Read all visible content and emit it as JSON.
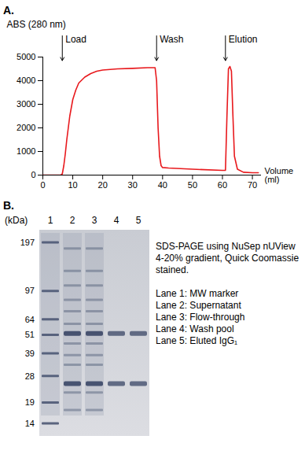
{
  "chart_data": {
    "type": "line",
    "panel_label": "A.",
    "y_label": "ABS (280 nm)",
    "x_label": "Volume (ml)",
    "x": [
      0,
      3,
      6,
      6.5,
      7,
      7.5,
      8,
      9,
      10,
      11,
      12,
      14,
      16,
      18,
      20,
      25,
      30,
      35,
      37.5,
      38,
      38.5,
      39,
      39.5,
      40,
      42,
      50,
      60,
      61,
      61.5,
      62,
      62.5,
      63,
      63.5,
      64,
      65,
      67,
      70,
      72
    ],
    "values": [
      0,
      0,
      0,
      50,
      400,
      900,
      1500,
      2500,
      3200,
      3600,
      3900,
      4150,
      4300,
      4400,
      4450,
      4500,
      4520,
      4550,
      4550,
      4000,
      2000,
      800,
      400,
      320,
      300,
      250,
      200,
      200,
      2500,
      4500,
      4600,
      4400,
      2500,
      800,
      250,
      120,
      100,
      100
    ],
    "color": "#e8191d",
    "xlim": [
      0,
      73
    ],
    "xticks": [
      0,
      10,
      20,
      30,
      40,
      50,
      60,
      70
    ],
    "ylim": [
      0,
      5000
    ],
    "yticks": [
      0,
      1000,
      2000,
      3000,
      4000,
      5000
    ],
    "annotations": [
      {
        "x": 6.5,
        "text": "Load"
      },
      {
        "x": 38,
        "text": "Wash"
      },
      {
        "x": 61,
        "text": "Elution"
      }
    ]
  },
  "gel": {
    "panel_label": "B.",
    "unit_label": "(kDa)",
    "markers": [
      197,
      97,
      64,
      51,
      39,
      28,
      19,
      14
    ],
    "lanes": [
      {
        "label": "1",
        "major": [],
        "minor": [
          197,
          97,
          64,
          51,
          39,
          28,
          19,
          14
        ]
      },
      {
        "label": "2",
        "major": [
          52,
          25
        ],
        "minor": [
          180,
          130,
          105,
          85,
          72,
          60,
          45,
          38,
          33,
          22,
          17
        ]
      },
      {
        "label": "3",
        "major": [
          52,
          25
        ],
        "minor": [
          180,
          130,
          105,
          85,
          72,
          60,
          45,
          38,
          33,
          22,
          17
        ]
      },
      {
        "label": "4",
        "major": [
          52,
          25
        ],
        "minor": []
      },
      {
        "label": "5",
        "major": [
          52,
          25
        ],
        "minor": []
      }
    ],
    "caption": "SDS-PAGE using NuSep nUView 4-20% gradient, Quick Coomassie stained.",
    "lane_key": [
      "Lane 1: MW marker",
      "Lane 2: Supernatant",
      "Lane 3: Flow-through",
      "Lane 4: Wash pool",
      "Lane 5: Eluted IgG₁"
    ]
  }
}
